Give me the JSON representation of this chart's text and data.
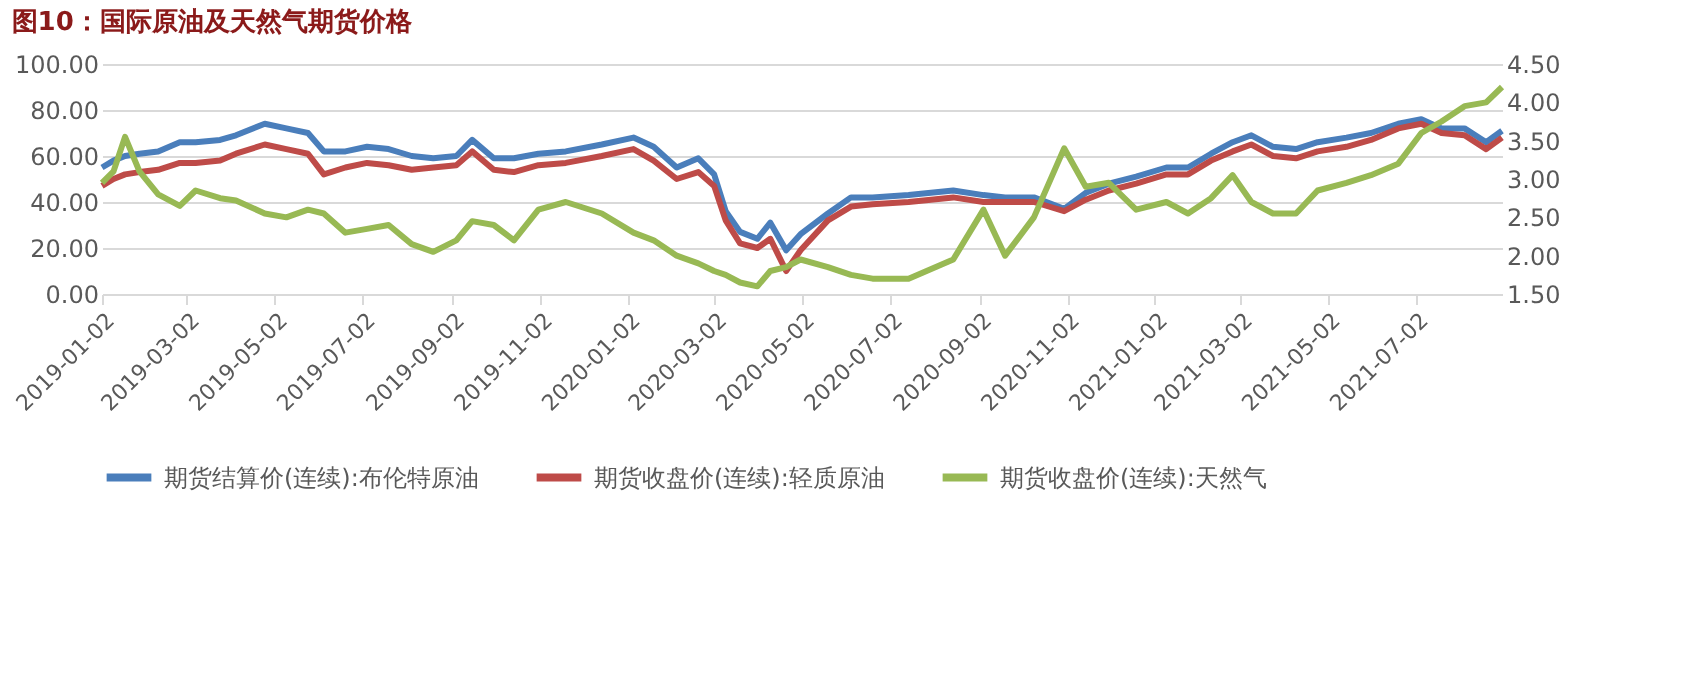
{
  "chart_data": {
    "type": "line",
    "title": "图10：国际原油及天然气期货价格",
    "x": [
      "2019-01-02",
      "2019-01-10",
      "2019-01-18",
      "2019-01-28",
      "2019-02-10",
      "2019-02-25",
      "2019-03-08",
      "2019-03-25",
      "2019-04-05",
      "2019-04-25",
      "2019-05-10",
      "2019-05-25",
      "2019-06-05",
      "2019-06-20",
      "2019-07-05",
      "2019-07-20",
      "2019-08-05",
      "2019-08-20",
      "2019-09-05",
      "2019-09-16",
      "2019-10-01",
      "2019-10-15",
      "2019-11-01",
      "2019-11-20",
      "2019-12-15",
      "2020-01-06",
      "2020-01-20",
      "2020-02-05",
      "2020-02-20",
      "2020-03-02",
      "2020-03-10",
      "2020-03-20",
      "2020-04-01",
      "2020-04-10",
      "2020-04-21",
      "2020-05-01",
      "2020-05-20",
      "2020-06-05",
      "2020-06-20",
      "2020-07-15",
      "2020-08-15",
      "2020-09-05",
      "2020-09-20",
      "2020-10-10",
      "2020-10-31",
      "2020-11-15",
      "2020-12-01",
      "2020-12-20",
      "2021-01-10",
      "2021-01-25",
      "2021-02-10",
      "2021-02-25",
      "2021-03-10",
      "2021-03-25",
      "2021-04-10",
      "2021-04-25",
      "2021-05-15",
      "2021-06-01",
      "2021-06-20",
      "2021-07-06",
      "2021-07-20",
      "2021-08-05",
      "2021-08-20",
      "2021-08-31"
    ],
    "series": [
      {
        "name": "期货结算价(连续):布伦特原油",
        "color": "#4a7ebb",
        "values": [
          55,
          58,
          60,
          61,
          62,
          66,
          66,
          67,
          69,
          74,
          72,
          70,
          62,
          62,
          64,
          63,
          60,
          59,
          60,
          67,
          59,
          59,
          61,
          62,
          65,
          68,
          64,
          55,
          59,
          52,
          36,
          27,
          24,
          31,
          19,
          26,
          35,
          42,
          42,
          43,
          45,
          43,
          42,
          42,
          37,
          44,
          48,
          51,
          55,
          55,
          61,
          66,
          69,
          64,
          63,
          66,
          68,
          70,
          74,
          76,
          72,
          72,
          66,
          71
        ]
      },
      {
        "name": "期货收盘价(连续):轻质原油",
        "color": "#be4b48",
        "values": [
          47,
          50,
          52,
          53,
          54,
          57,
          57,
          58,
          61,
          65,
          63,
          61,
          52,
          55,
          57,
          56,
          54,
          55,
          56,
          62,
          54,
          53,
          56,
          57,
          60,
          63,
          58,
          50,
          53,
          47,
          32,
          22,
          20,
          24,
          10,
          19,
          32,
          38,
          39,
          40,
          42,
          40,
          40,
          40,
          36,
          41,
          45,
          48,
          52,
          52,
          58,
          62,
          65,
          60,
          59,
          62,
          64,
          67,
          72,
          74,
          70,
          69,
          63,
          68
        ]
      },
      {
        "name": "期货收盘价(连续):天然气",
        "color": "#98b954",
        "axis": "y2",
        "values": [
          2.95,
          3.1,
          3.55,
          3.1,
          2.8,
          2.65,
          2.85,
          2.75,
          2.72,
          2.55,
          2.5,
          2.6,
          2.55,
          2.3,
          2.35,
          2.4,
          2.15,
          2.05,
          2.2,
          2.45,
          2.4,
          2.2,
          2.6,
          2.7,
          2.55,
          2.3,
          2.2,
          2.0,
          1.9,
          1.8,
          1.75,
          1.65,
          1.6,
          1.8,
          1.85,
          1.95,
          1.85,
          1.75,
          1.7,
          1.7,
          1.95,
          2.6,
          2.0,
          2.5,
          3.4,
          2.9,
          2.95,
          2.6,
          2.7,
          2.55,
          2.75,
          3.05,
          2.7,
          2.55,
          2.55,
          2.85,
          2.95,
          3.05,
          3.2,
          3.6,
          3.75,
          3.95,
          4.0,
          4.2
        ]
      }
    ],
    "xlim": [
      "2019-01-02",
      "2021-08-31"
    ],
    "xticks": [
      "2019-01-02",
      "2019-03-02",
      "2019-05-02",
      "2019-07-02",
      "2019-09-02",
      "2019-11-02",
      "2020-01-02",
      "2020-03-02",
      "2020-05-02",
      "2020-07-02",
      "2020-09-02",
      "2020-11-02",
      "2021-01-02",
      "2021-03-02",
      "2021-05-02",
      "2021-07-02"
    ],
    "ylim": [
      0,
      100
    ],
    "yticks": [
      {
        "value": 0,
        "label": "0.00"
      },
      {
        "value": 20,
        "label": "20.00"
      },
      {
        "value": 40,
        "label": "40.00"
      },
      {
        "value": 60,
        "label": "60.00"
      },
      {
        "value": 80,
        "label": "80.00"
      },
      {
        "value": 100,
        "label": "100.00"
      }
    ],
    "y2lim": [
      1.5,
      4.5
    ],
    "y2ticks": [
      {
        "value": 1.5,
        "label": "1.50"
      },
      {
        "value": 2,
        "label": "2.00"
      },
      {
        "value": 2.5,
        "label": "2.50"
      },
      {
        "value": 3,
        "label": "3.00"
      },
      {
        "value": 3.5,
        "label": "3.50"
      },
      {
        "value": 4,
        "label": "4.00"
      },
      {
        "value": 4.5,
        "label": "4.50"
      }
    ],
    "grid": "y",
    "legend": "bottom",
    "marker": "none",
    "line_style": "solid"
  }
}
